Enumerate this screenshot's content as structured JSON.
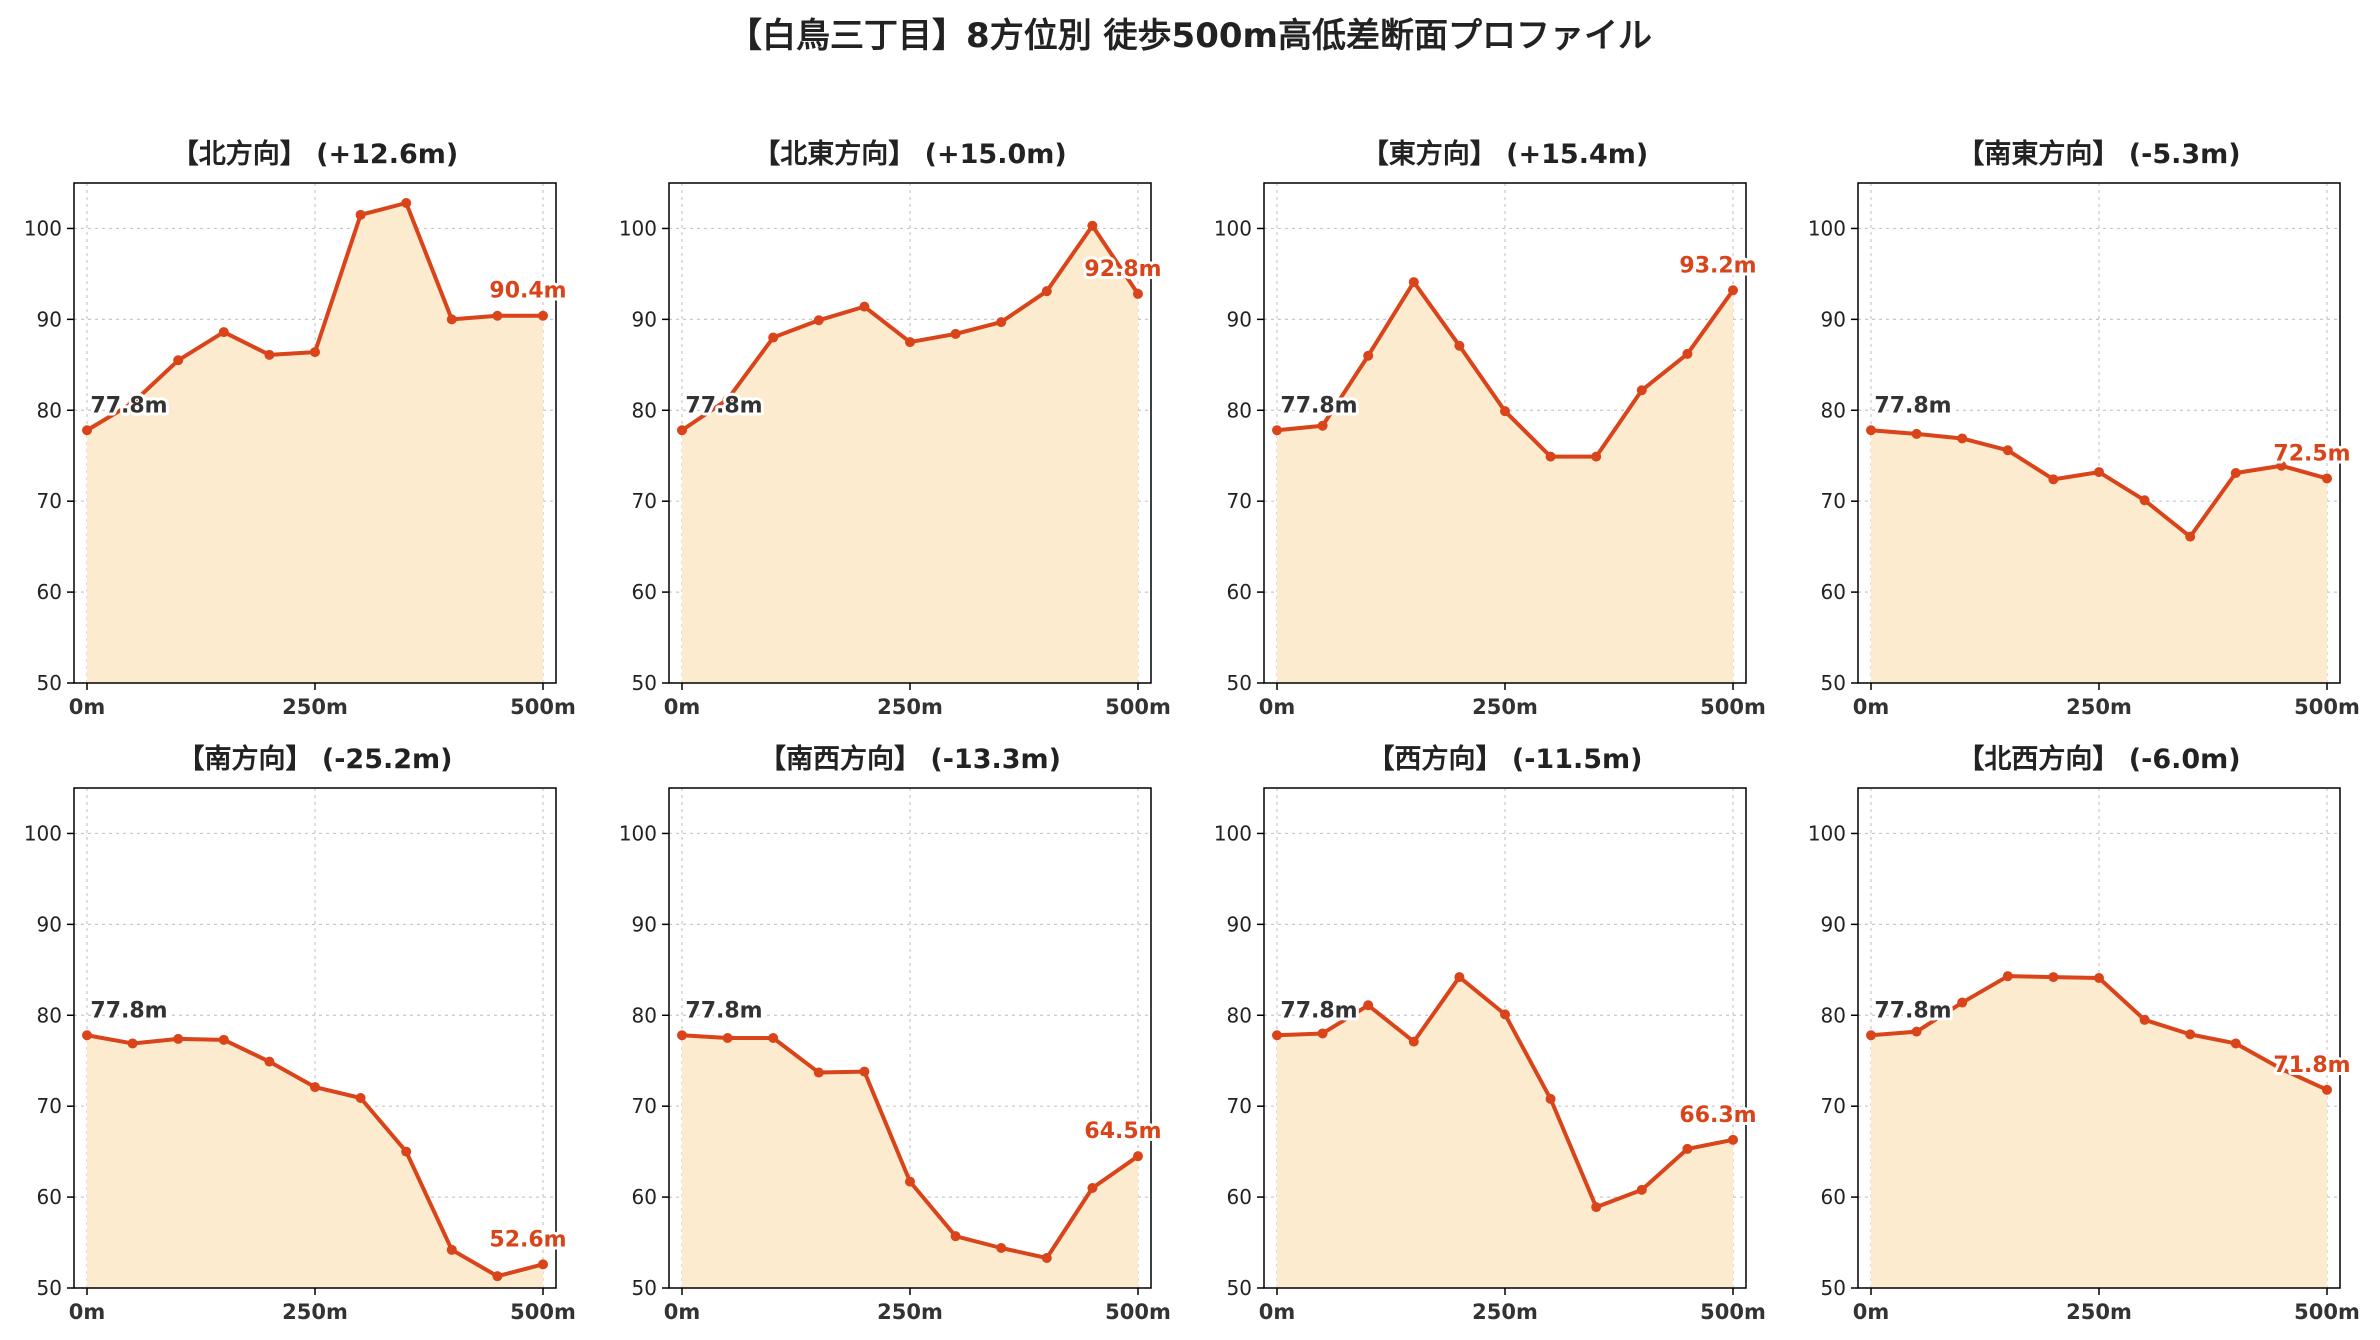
{
  "figure": {
    "title": "【白鳥三丁目】8方位別 徒歩500m高低差断面プロファイル"
  },
  "style": {
    "line_color": "#d9441a",
    "fill_color": "#fdebd0",
    "start_label_color": "#333333",
    "end_label_color": "#d9441a",
    "grid_color": "#c8c8c8",
    "axis_color": "#000000"
  },
  "chart_data": [
    {
      "type": "area",
      "title": "【北方向】 (+12.6m)",
      "x": [
        0,
        50,
        100,
        150,
        200,
        250,
        300,
        350,
        400,
        450,
        500
      ],
      "values": [
        77.8,
        80.8,
        85.5,
        88.6,
        86.1,
        86.4,
        101.5,
        102.8,
        90.0,
        90.4,
        90.4
      ],
      "xticks": [
        "0m",
        "250m",
        "500m"
      ],
      "yticks": [
        "50",
        "60",
        "70",
        "80",
        "90",
        "100"
      ],
      "ylim": [
        50,
        105
      ],
      "start_label": "77.8m",
      "end_label": "90.4m",
      "grid": true
    },
    {
      "type": "area",
      "title": "【北東方向】 (+15.0m)",
      "x": [
        0,
        50,
        100,
        150,
        200,
        250,
        300,
        350,
        400,
        450,
        500
      ],
      "values": [
        77.8,
        81.2,
        88.0,
        89.9,
        91.4,
        87.5,
        88.4,
        89.7,
        93.1,
        100.3,
        92.8
      ],
      "xticks": [
        "0m",
        "250m",
        "500m"
      ],
      "yticks": [
        "50",
        "60",
        "70",
        "80",
        "90",
        "100"
      ],
      "ylim": [
        50,
        105
      ],
      "start_label": "77.8m",
      "end_label": "92.8m",
      "grid": true
    },
    {
      "type": "area",
      "title": "【東方向】 (+15.4m)",
      "x": [
        0,
        50,
        100,
        150,
        200,
        250,
        300,
        350,
        400,
        450,
        500
      ],
      "values": [
        77.8,
        78.3,
        86.0,
        94.1,
        87.1,
        79.9,
        74.9,
        74.9,
        82.2,
        86.2,
        93.2
      ],
      "xticks": [
        "0m",
        "250m",
        "500m"
      ],
      "yticks": [
        "50",
        "60",
        "70",
        "80",
        "90",
        "100"
      ],
      "ylim": [
        50,
        105
      ],
      "start_label": "77.8m",
      "end_label": "93.2m",
      "grid": true
    },
    {
      "type": "area",
      "title": "【南東方向】 (-5.3m)",
      "x": [
        0,
        50,
        100,
        150,
        200,
        250,
        300,
        350,
        400,
        450,
        500
      ],
      "values": [
        77.8,
        77.4,
        76.9,
        75.6,
        72.4,
        73.2,
        70.1,
        66.1,
        73.1,
        73.9,
        72.5
      ],
      "xticks": [
        "0m",
        "250m",
        "500m"
      ],
      "yticks": [
        "50",
        "60",
        "70",
        "80",
        "90",
        "100"
      ],
      "ylim": [
        50,
        105
      ],
      "start_label": "77.8m",
      "end_label": "72.5m",
      "grid": true
    },
    {
      "type": "area",
      "title": "【南方向】 (-25.2m)",
      "x": [
        0,
        50,
        100,
        150,
        200,
        250,
        300,
        350,
        400,
        450,
        500
      ],
      "values": [
        77.8,
        76.9,
        77.4,
        77.3,
        74.9,
        72.1,
        70.9,
        65.0,
        54.2,
        51.3,
        52.6
      ],
      "xticks": [
        "0m",
        "250m",
        "500m"
      ],
      "yticks": [
        "50",
        "60",
        "70",
        "80",
        "90",
        "100"
      ],
      "ylim": [
        50,
        105
      ],
      "start_label": "77.8m",
      "end_label": "52.6m",
      "grid": true
    },
    {
      "type": "area",
      "title": "【南西方向】 (-13.3m)",
      "x": [
        0,
        50,
        100,
        150,
        200,
        250,
        300,
        350,
        400,
        450,
        500
      ],
      "values": [
        77.8,
        77.5,
        77.5,
        73.7,
        73.8,
        61.7,
        55.7,
        54.4,
        53.3,
        61.0,
        64.5
      ],
      "xticks": [
        "0m",
        "250m",
        "500m"
      ],
      "yticks": [
        "50",
        "60",
        "70",
        "80",
        "90",
        "100"
      ],
      "ylim": [
        50,
        105
      ],
      "start_label": "77.8m",
      "end_label": "64.5m",
      "grid": true
    },
    {
      "type": "area",
      "title": "【西方向】 (-11.5m)",
      "x": [
        0,
        50,
        100,
        150,
        200,
        250,
        300,
        350,
        400,
        450,
        500
      ],
      "values": [
        77.8,
        78.0,
        81.1,
        77.1,
        84.2,
        80.1,
        70.8,
        58.9,
        60.8,
        65.3,
        66.3
      ],
      "xticks": [
        "0m",
        "250m",
        "500m"
      ],
      "yticks": [
        "50",
        "60",
        "70",
        "80",
        "90",
        "100"
      ],
      "ylim": [
        50,
        105
      ],
      "start_label": "77.8m",
      "end_label": "66.3m",
      "grid": true
    },
    {
      "type": "area",
      "title": "【北西方向】 (-6.0m)",
      "x": [
        0,
        50,
        100,
        150,
        200,
        250,
        300,
        350,
        400,
        450,
        500
      ],
      "values": [
        77.8,
        78.2,
        81.4,
        84.3,
        84.2,
        84.1,
        79.5,
        77.9,
        76.9,
        74.1,
        71.8
      ],
      "xticks": [
        "0m",
        "250m",
        "500m"
      ],
      "yticks": [
        "50",
        "60",
        "70",
        "80",
        "90",
        "100"
      ],
      "ylim": [
        50,
        105
      ],
      "start_label": "77.8m",
      "end_label": "71.8m",
      "grid": true
    }
  ]
}
